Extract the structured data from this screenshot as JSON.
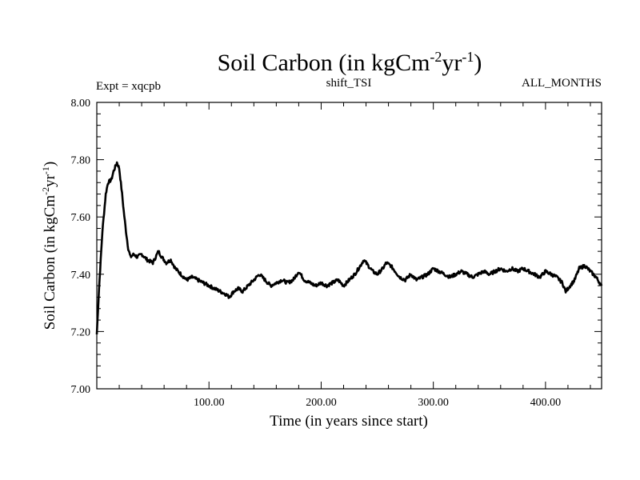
{
  "chart_data": {
    "type": "line",
    "title_main": "Soil Carbon (in kgCm",
    "title_sup1": "-2",
    "title_mid": "yr",
    "title_sup2": "-1",
    "title_end": ")",
    "subtitle_left": "Expt = xqcpb",
    "subtitle_center": "shift_TSI",
    "subtitle_right": "ALL_MONTHS",
    "xlabel": "Time (in years since start)",
    "ylabel_main": "Soil Carbon (in kgCm",
    "ylabel_sup1": "-2",
    "ylabel_mid": "yr",
    "ylabel_sup2": "-1",
    "ylabel_end": ")",
    "xlim": [
      0,
      450
    ],
    "ylim": [
      7.0,
      8.0
    ],
    "xticks": [
      100,
      200,
      300,
      400
    ],
    "xtick_labels": [
      "100.00",
      "200.00",
      "300.00",
      "400.00"
    ],
    "yticks": [
      7.0,
      7.2,
      7.4,
      7.6,
      7.8,
      8.0
    ],
    "ytick_labels": [
      "7.00",
      "7.20",
      "7.40",
      "7.60",
      "7.80",
      "8.00"
    ],
    "series": [
      {
        "name": "Soil Carbon",
        "x": [
          0,
          2,
          5,
          8,
          10,
          13,
          15,
          18,
          20,
          22,
          24,
          26,
          28,
          30,
          33,
          36,
          40,
          45,
          50,
          55,
          58,
          62,
          66,
          70,
          75,
          80,
          85,
          90,
          95,
          100,
          105,
          110,
          115,
          118,
          122,
          126,
          130,
          135,
          140,
          145,
          150,
          155,
          160,
          165,
          170,
          175,
          180,
          185,
          190,
          195,
          200,
          205,
          210,
          215,
          220,
          225,
          230,
          235,
          238,
          242,
          246,
          250,
          255,
          258,
          262,
          266,
          270,
          275,
          280,
          285,
          290,
          295,
          300,
          305,
          310,
          315,
          320,
          325,
          330,
          335,
          340,
          345,
          350,
          355,
          360,
          365,
          370,
          375,
          380,
          385,
          390,
          395,
          400,
          405,
          410,
          415,
          418,
          422,
          426,
          430,
          435,
          440,
          445,
          450
        ],
        "values": [
          7.19,
          7.35,
          7.55,
          7.68,
          7.72,
          7.73,
          7.76,
          7.79,
          7.77,
          7.7,
          7.62,
          7.55,
          7.49,
          7.46,
          7.47,
          7.46,
          7.47,
          7.45,
          7.44,
          7.48,
          7.46,
          7.44,
          7.45,
          7.42,
          7.4,
          7.38,
          7.39,
          7.38,
          7.37,
          7.36,
          7.35,
          7.34,
          7.33,
          7.32,
          7.34,
          7.35,
          7.34,
          7.36,
          7.38,
          7.4,
          7.38,
          7.36,
          7.37,
          7.38,
          7.37,
          7.38,
          7.41,
          7.38,
          7.37,
          7.36,
          7.37,
          7.36,
          7.37,
          7.38,
          7.36,
          7.38,
          7.4,
          7.43,
          7.45,
          7.43,
          7.41,
          7.4,
          7.42,
          7.44,
          7.43,
          7.41,
          7.39,
          7.38,
          7.4,
          7.38,
          7.39,
          7.4,
          7.42,
          7.41,
          7.4,
          7.39,
          7.4,
          7.41,
          7.4,
          7.39,
          7.4,
          7.41,
          7.4,
          7.41,
          7.42,
          7.41,
          7.42,
          7.41,
          7.42,
          7.41,
          7.4,
          7.39,
          7.41,
          7.4,
          7.39,
          7.37,
          7.34,
          7.36,
          7.38,
          7.42,
          7.43,
          7.41,
          7.39,
          7.36
        ]
      }
    ],
    "grid": false,
    "legend": "none"
  }
}
